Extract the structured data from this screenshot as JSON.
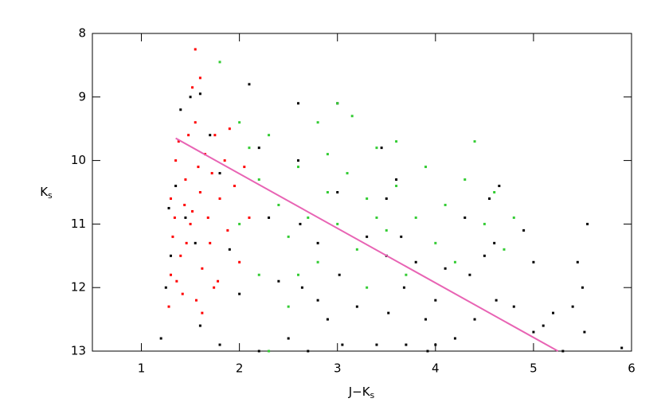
{
  "chart_data": {
    "type": "scatter",
    "xlabel": [
      "J−K",
      "s"
    ],
    "ylabel": [
      "K",
      "s"
    ],
    "xlim": [
      0.5,
      6.0
    ],
    "ylim": [
      13,
      8
    ],
    "xticks": [
      1,
      2,
      3,
      4,
      5,
      6
    ],
    "yticks": [
      8,
      9,
      10,
      11,
      12,
      13
    ],
    "series": [
      {
        "color": "#ff0000",
        "x": [
          1.28,
          1.3,
          1.32,
          1.3,
          1.35,
          1.38,
          1.4,
          1.42,
          1.45,
          1.48,
          1.5,
          1.52,
          1.55,
          1.56,
          1.6,
          1.62,
          1.65,
          1.68,
          1.7,
          1.72,
          1.75,
          1.78,
          1.8,
          1.85,
          1.88,
          1.9,
          1.95,
          2.0,
          2.05,
          2.1,
          1.55,
          1.6,
          1.52,
          1.34,
          1.36,
          1.44,
          1.46,
          1.58,
          1.62,
          1.74
        ],
        "values": [
          12.3,
          11.8,
          11.2,
          10.6,
          10.0,
          9.7,
          11.5,
          12.1,
          10.3,
          9.6,
          11.0,
          10.8,
          9.4,
          12.2,
          10.5,
          11.7,
          9.9,
          10.9,
          11.3,
          10.2,
          9.6,
          11.9,
          10.6,
          10.0,
          11.1,
          9.5,
          10.4,
          11.6,
          10.1,
          10.9,
          8.25,
          8.7,
          8.85,
          10.9,
          11.9,
          10.7,
          11.3,
          10.1,
          12.4,
          12.0
        ]
      },
      {
        "color": "#000000",
        "x": [
          1.2,
          1.25,
          1.3,
          1.28,
          1.35,
          1.4,
          1.45,
          1.5,
          1.55,
          1.6,
          1.7,
          1.8,
          1.9,
          2.0,
          2.1,
          2.2,
          2.3,
          2.4,
          2.5,
          2.6,
          2.6,
          2.62,
          2.64,
          2.7,
          2.8,
          2.9,
          3.0,
          3.0,
          3.02,
          3.05,
          3.2,
          3.3,
          3.45,
          3.5,
          3.5,
          3.52,
          3.6,
          3.65,
          3.68,
          3.7,
          3.8,
          3.9,
          3.92,
          4.0,
          4.1,
          4.2,
          4.3,
          4.35,
          4.4,
          4.5,
          4.55,
          4.6,
          4.62,
          4.65,
          4.8,
          4.9,
          5.0,
          5.0,
          5.1,
          5.2,
          5.3,
          5.4,
          5.45,
          5.5,
          5.52,
          5.55,
          5.9,
          1.6,
          1.8,
          2.2,
          2.8,
          3.4,
          4.0
        ],
        "values": [
          12.8,
          12.0,
          11.5,
          10.75,
          10.4,
          9.2,
          10.9,
          9.0,
          11.3,
          8.95,
          9.6,
          10.2,
          11.4,
          12.1,
          8.8,
          9.8,
          10.9,
          11.9,
          12.8,
          9.1,
          10.0,
          11.0,
          12.0,
          13.0,
          11.3,
          12.5,
          9.1,
          10.5,
          11.8,
          12.9,
          12.3,
          11.2,
          9.8,
          10.6,
          11.5,
          12.4,
          10.3,
          11.2,
          12.0,
          12.9,
          11.6,
          12.5,
          13.0,
          12.2,
          11.7,
          12.8,
          10.9,
          11.8,
          12.5,
          11.5,
          10.6,
          11.3,
          12.2,
          10.4,
          12.3,
          11.1,
          11.6,
          12.7,
          12.6,
          12.4,
          13.0,
          12.3,
          11.6,
          12.0,
          12.7,
          11.0,
          12.95,
          12.6,
          12.9,
          13.0,
          12.2,
          12.9,
          12.9
        ]
      },
      {
        "color": "#33cc33",
        "x": [
          1.8,
          2.0,
          2.1,
          2.2,
          2.3,
          2.4,
          2.5,
          2.6,
          2.7,
          2.8,
          2.8,
          2.9,
          3.0,
          3.0,
          3.1,
          3.2,
          3.3,
          3.4,
          3.5,
          3.6,
          3.7,
          3.8,
          3.9,
          4.0,
          4.1,
          4.2,
          4.3,
          4.4,
          4.5,
          4.6,
          4.7,
          4.8,
          2.5,
          2.3,
          3.3,
          2.0,
          2.2,
          2.9,
          3.15,
          3.6,
          2.6,
          3.4
        ],
        "values": [
          8.45,
          9.4,
          9.8,
          10.3,
          9.6,
          10.7,
          11.2,
          10.1,
          10.9,
          9.4,
          11.6,
          10.5,
          11.0,
          9.1,
          10.2,
          11.4,
          10.6,
          9.8,
          11.1,
          10.4,
          11.8,
          10.9,
          10.1,
          11.3,
          10.7,
          11.6,
          10.3,
          9.7,
          11.0,
          10.5,
          11.4,
          10.9,
          12.3,
          13.0,
          12.0,
          11.0,
          11.8,
          9.9,
          9.3,
          9.7,
          11.8,
          10.9
        ]
      }
    ],
    "fit_line": {
      "color": "#e864b4",
      "x": [
        1.35,
        5.25
      ],
      "values": [
        9.65,
        13.0
      ]
    }
  }
}
